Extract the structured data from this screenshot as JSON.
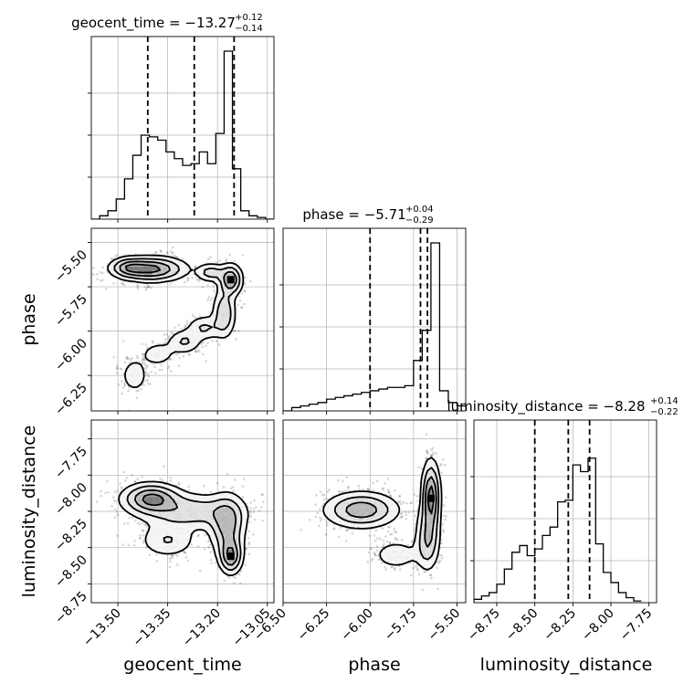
{
  "chart_data": {
    "type": "corner",
    "parameters": [
      "geocent_time",
      "phase",
      "luminosity_distance"
    ],
    "titles": [
      {
        "param": "geocent_time",
        "median": "−13.27",
        "plus": "+0.12",
        "minus": "−0.14"
      },
      {
        "param": "phase",
        "median": "−5.71",
        "plus": "+0.04",
        "minus": "−0.29"
      },
      {
        "param": "luminosity_distance",
        "median": "−8.28",
        "plus": "+0.14",
        "minus": "−0.22"
      }
    ],
    "axes": {
      "geocent_time": {
        "range": [
          -13.58,
          -13.03
        ],
        "ticks": [
          -13.5,
          -13.35,
          -13.2,
          -13.05
        ],
        "tick_labels": [
          "−13.50",
          "−13.35",
          "−13.20",
          "−13.05"
        ]
      },
      "phase": {
        "range": [
          -6.5,
          -5.45
        ],
        "ticks": [
          -6.5,
          -6.25,
          -6.0,
          -5.75,
          -5.5
        ],
        "tick_labels": [
          "−6.50",
          "−6.25",
          "−6.00",
          "−5.75",
          "−5.50"
        ]
      },
      "luminosity_distance": {
        "range": [
          -8.9,
          -7.7
        ],
        "ticks": [
          -8.75,
          -8.5,
          -8.25,
          -8.0,
          -7.75
        ],
        "tick_labels": [
          "−8.75",
          "−8.50",
          "−8.25",
          "−8.00",
          "−7.75"
        ]
      }
    },
    "y_axes": {
      "phase": {
        "range": [
          -6.45,
          -5.42
        ],
        "ticks": [
          -6.25,
          -6.0,
          -5.75,
          -5.5
        ],
        "tick_labels": [
          "−6.25",
          "−6.00",
          "−5.75",
          "−5.50"
        ]
      },
      "luminosity_distance": {
        "range": [
          -8.88,
          -7.62
        ],
        "ticks": [
          -8.75,
          -8.5,
          -8.25,
          -8.0,
          -7.75
        ],
        "tick_labels": [
          "−8.75",
          "−8.50",
          "−8.25",
          "−8.00",
          "−7.75"
        ]
      }
    },
    "quantiles": {
      "geocent_time": [
        -13.41,
        -13.27,
        -13.15
      ],
      "phase": [
        -6.0,
        -5.71,
        -5.67
      ],
      "luminosity_distance": [
        -8.5,
        -8.28,
        -8.14
      ]
    },
    "histograms": {
      "geocent_time": {
        "edges": [
          -13.58,
          -13.555,
          -13.53,
          -13.505,
          -13.48,
          -13.455,
          -13.43,
          -13.405,
          -13.38,
          -13.355,
          -13.33,
          -13.305,
          -13.28,
          -13.255,
          -13.23,
          -13.205,
          -13.18,
          -13.155,
          -13.13,
          -13.105,
          -13.08,
          -13.055,
          -13.03
        ],
        "counts": [
          0,
          0.02,
          0.05,
          0.12,
          0.24,
          0.38,
          0.5,
          0.49,
          0.47,
          0.4,
          0.36,
          0.32,
          0.33,
          0.4,
          0.33,
          0.51,
          1.0,
          0.3,
          0.05,
          0.02,
          0.01,
          0
        ]
      },
      "phase": {
        "edges": [
          -6.5,
          -6.45,
          -6.4,
          -6.35,
          -6.3,
          -6.25,
          -6.2,
          -6.15,
          -6.1,
          -6.05,
          -6.0,
          -5.95,
          -5.9,
          -5.85,
          -5.8,
          -5.75,
          -5.7,
          -5.65,
          -5.6,
          -5.55,
          -5.5,
          -5.45
        ],
        "counts": [
          0,
          0.02,
          0.03,
          0.04,
          0.05,
          0.07,
          0.08,
          0.09,
          0.1,
          0.11,
          0.12,
          0.13,
          0.14,
          0.14,
          0.15,
          0.3,
          0.48,
          1.0,
          0.12,
          0.05,
          0.03
        ]
      },
      "luminosity_distance": {
        "edges": [
          -8.9,
          -8.85,
          -8.8,
          -8.75,
          -8.7,
          -8.65,
          -8.6,
          -8.55,
          -8.5,
          -8.45,
          -8.4,
          -8.35,
          -8.3,
          -8.25,
          -8.2,
          -8.15,
          -8.1,
          -8.05,
          -8.0,
          -7.95,
          -7.9,
          -7.85,
          -7.8
        ],
        "counts": [
          0.02,
          0.04,
          0.06,
          0.11,
          0.2,
          0.3,
          0.34,
          0.28,
          0.32,
          0.4,
          0.45,
          0.6,
          0.61,
          0.82,
          0.78,
          0.86,
          0.35,
          0.18,
          0.12,
          0.06,
          0.03,
          0.01
        ]
      }
    },
    "density_2d": {
      "phase_vs_geocent_time": {
        "x": "geocent_time",
        "y": "phase",
        "blobs": [
          [
            -13.4,
            -5.65,
            0.06,
            0.04,
            1.0
          ],
          [
            -13.47,
            -5.64,
            0.03,
            0.03,
            0.5
          ],
          [
            -13.22,
            -5.67,
            0.025,
            0.03,
            0.5
          ],
          [
            -13.16,
            -5.71,
            0.02,
            0.05,
            0.9
          ],
          [
            -13.18,
            -5.9,
            0.02,
            0.08,
            0.6
          ],
          [
            -13.24,
            -5.98,
            0.03,
            0.04,
            0.4
          ],
          [
            -13.3,
            -6.06,
            0.03,
            0.04,
            0.4
          ],
          [
            -13.38,
            -6.13,
            0.03,
            0.04,
            0.3
          ],
          [
            -13.45,
            -6.25,
            0.025,
            0.06,
            0.3
          ]
        ],
        "peak": [
          -13.16,
          -5.71
        ]
      },
      "luminosity_distance_vs_geocent_time": {
        "x": "geocent_time",
        "y": "luminosity_distance",
        "blobs": [
          [
            -13.4,
            -8.16,
            0.05,
            0.06,
            1.0
          ],
          [
            -13.28,
            -8.25,
            0.09,
            0.07,
            0.6
          ],
          [
            -13.17,
            -8.35,
            0.03,
            0.12,
            0.8
          ],
          [
            -13.16,
            -8.56,
            0.02,
            0.07,
            0.9
          ],
          [
            -13.35,
            -8.45,
            0.05,
            0.07,
            0.4
          ]
        ],
        "peak": [
          -13.16,
          -8.56
        ]
      },
      "luminosity_distance_vs_phase": {
        "x": "phase",
        "y": "luminosity_distance",
        "blobs": [
          [
            -6.05,
            -8.24,
            0.12,
            0.07,
            0.8
          ],
          [
            -5.65,
            -8.15,
            0.03,
            0.14,
            1.0
          ],
          [
            -5.67,
            -8.45,
            0.04,
            0.12,
            0.6
          ],
          [
            -5.85,
            -8.55,
            0.08,
            0.06,
            0.3
          ]
        ],
        "peak": [
          -5.65,
          -8.16
        ]
      }
    },
    "contour_levels": [
      0.15,
      0.35,
      0.6,
      0.85
    ]
  }
}
